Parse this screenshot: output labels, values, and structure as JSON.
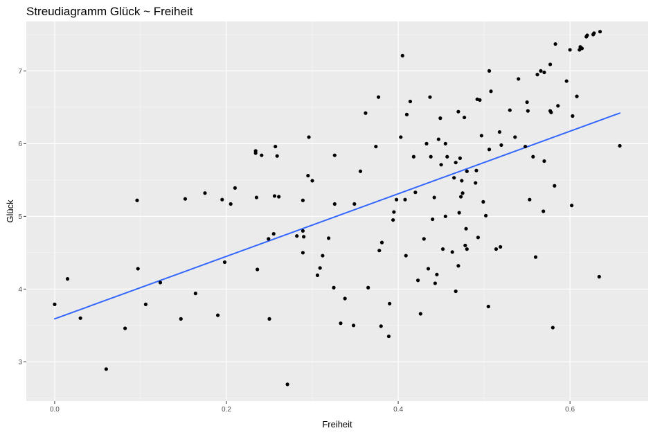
{
  "chart_data": {
    "type": "scatter",
    "title": "Streudiagramm Glück ~ Freiheit",
    "xlabel": "Freiheit",
    "ylabel": "Glück",
    "xlim": [
      -0.033,
      0.691
    ],
    "ylim": [
      2.46,
      7.68
    ],
    "xticks": [
      {
        "value": 0.0,
        "label": "0.0"
      },
      {
        "value": 0.2,
        "label": "0.2"
      },
      {
        "value": 0.4,
        "label": "0.4"
      },
      {
        "value": 0.6,
        "label": "0.6"
      }
    ],
    "yticks": [
      {
        "value": 3,
        "label": "3"
      },
      {
        "value": 4,
        "label": "4"
      },
      {
        "value": 5,
        "label": "5"
      },
      {
        "value": 6,
        "label": "6"
      },
      {
        "value": 7,
        "label": "7"
      }
    ],
    "grid": true,
    "legend": "none",
    "colors": {
      "panel": "#EBEBEB",
      "grid": "#FFFFFF",
      "point": "#000000",
      "fit_line": "#3366FF"
    },
    "points": [
      [
        0.0,
        3.79
      ],
      [
        0.015,
        4.14
      ],
      [
        0.03,
        3.6
      ],
      [
        0.06,
        2.9
      ],
      [
        0.082,
        3.46
      ],
      [
        0.096,
        5.22
      ],
      [
        0.097,
        4.28
      ],
      [
        0.106,
        3.79
      ],
      [
        0.123,
        4.09
      ],
      [
        0.147,
        3.59
      ],
      [
        0.152,
        5.24
      ],
      [
        0.164,
        3.94
      ],
      [
        0.175,
        5.32
      ],
      [
        0.19,
        3.64
      ],
      [
        0.195,
        5.23
      ],
      [
        0.198,
        4.37
      ],
      [
        0.205,
        5.17
      ],
      [
        0.21,
        5.39
      ],
      [
        0.234,
        5.87
      ],
      [
        0.234,
        5.9
      ],
      [
        0.235,
        5.26
      ],
      [
        0.236,
        4.27
      ],
      [
        0.241,
        5.84
      ],
      [
        0.249,
        4.69
      ],
      [
        0.25,
        3.59
      ],
      [
        0.255,
        4.76
      ],
      [
        0.256,
        5.28
      ],
      [
        0.257,
        5.96
      ],
      [
        0.259,
        5.83
      ],
      [
        0.261,
        5.27
      ],
      [
        0.271,
        2.69
      ],
      [
        0.282,
        4.73
      ],
      [
        0.289,
        4.5
      ],
      [
        0.289,
        4.8
      ],
      [
        0.29,
        4.72
      ],
      [
        0.289,
        5.22
      ],
      [
        0.295,
        5.56
      ],
      [
        0.296,
        6.09
      ],
      [
        0.3,
        5.49
      ],
      [
        0.306,
        4.19
      ],
      [
        0.309,
        4.29
      ],
      [
        0.312,
        4.46
      ],
      [
        0.319,
        4.7
      ],
      [
        0.325,
        4.02
      ],
      [
        0.326,
        5.17
      ],
      [
        0.326,
        5.84
      ],
      [
        0.333,
        3.53
      ],
      [
        0.338,
        3.87
      ],
      [
        0.348,
        3.5
      ],
      [
        0.349,
        5.17
      ],
      [
        0.356,
        5.62
      ],
      [
        0.362,
        6.42
      ],
      [
        0.365,
        4.02
      ],
      [
        0.374,
        5.96
      ],
      [
        0.377,
        6.64
      ],
      [
        0.378,
        4.53
      ],
      [
        0.381,
        4.64
      ],
      [
        0.38,
        3.49
      ],
      [
        0.389,
        3.35
      ],
      [
        0.39,
        3.8
      ],
      [
        0.394,
        4.95
      ],
      [
        0.395,
        5.06
      ],
      [
        0.398,
        5.23
      ],
      [
        0.403,
        6.09
      ],
      [
        0.405,
        7.21
      ],
      [
        0.408,
        5.23
      ],
      [
        0.409,
        4.46
      ],
      [
        0.41,
        6.4
      ],
      [
        0.414,
        6.58
      ],
      [
        0.418,
        5.82
      ],
      [
        0.42,
        5.33
      ],
      [
        0.423,
        4.12
      ],
      [
        0.426,
        3.66
      ],
      [
        0.43,
        4.69
      ],
      [
        0.433,
        6.0
      ],
      [
        0.435,
        4.28
      ],
      [
        0.437,
        6.64
      ],
      [
        0.438,
        5.82
      ],
      [
        0.44,
        4.96
      ],
      [
        0.442,
        5.26
      ],
      [
        0.443,
        4.08
      ],
      [
        0.445,
        4.2
      ],
      [
        0.447,
        6.06
      ],
      [
        0.449,
        6.35
      ],
      [
        0.45,
        5.71
      ],
      [
        0.452,
        4.55
      ],
      [
        0.455,
        5.0
      ],
      [
        0.455,
        6.0
      ],
      [
        0.457,
        5.82
      ],
      [
        0.463,
        4.51
      ],
      [
        0.465,
        5.53
      ],
      [
        0.467,
        3.97
      ],
      [
        0.467,
        5.74
      ],
      [
        0.47,
        4.32
      ],
      [
        0.47,
        6.44
      ],
      [
        0.471,
        5.05
      ],
      [
        0.472,
        5.8
      ],
      [
        0.473,
        5.27
      ],
      [
        0.474,
        5.49
      ],
      [
        0.475,
        5.32
      ],
      [
        0.477,
        6.36
      ],
      [
        0.478,
        4.6
      ],
      [
        0.479,
        4.83
      ],
      [
        0.48,
        5.62
      ],
      [
        0.48,
        4.55
      ],
      [
        0.49,
        5.46
      ],
      [
        0.491,
        5.63
      ],
      [
        0.492,
        6.61
      ],
      [
        0.493,
        4.71
      ],
      [
        0.495,
        6.6
      ],
      [
        0.497,
        6.11
      ],
      [
        0.499,
        5.2
      ],
      [
        0.502,
        5.01
      ],
      [
        0.505,
        3.76
      ],
      [
        0.506,
        5.92
      ],
      [
        0.506,
        7.0
      ],
      [
        0.508,
        6.72
      ],
      [
        0.514,
        4.55
      ],
      [
        0.518,
        6.16
      ],
      [
        0.519,
        4.58
      ],
      [
        0.52,
        5.98
      ],
      [
        0.53,
        6.46
      ],
      [
        0.536,
        6.09
      ],
      [
        0.54,
        6.89
      ],
      [
        0.548,
        5.96
      ],
      [
        0.55,
        6.57
      ],
      [
        0.551,
        6.45
      ],
      [
        0.553,
        5.23
      ],
      [
        0.557,
        5.82
      ],
      [
        0.56,
        4.44
      ],
      [
        0.562,
        6.95
      ],
      [
        0.566,
        7.0
      ],
      [
        0.569,
        5.07
      ],
      [
        0.57,
        6.98
      ],
      [
        0.57,
        5.76
      ],
      [
        0.577,
        7.09
      ],
      [
        0.577,
        6.45
      ],
      [
        0.578,
        6.43
      ],
      [
        0.58,
        3.47
      ],
      [
        0.582,
        5.42
      ],
      [
        0.583,
        7.37
      ],
      [
        0.586,
        6.52
      ],
      [
        0.596,
        6.86
      ],
      [
        0.6,
        7.29
      ],
      [
        0.602,
        5.15
      ],
      [
        0.603,
        6.38
      ],
      [
        0.608,
        6.65
      ],
      [
        0.611,
        7.29
      ],
      [
        0.612,
        7.33
      ],
      [
        0.614,
        7.31
      ],
      [
        0.619,
        7.47
      ],
      [
        0.62,
        7.49
      ],
      [
        0.627,
        7.5
      ],
      [
        0.628,
        7.52
      ],
      [
        0.635,
        7.54
      ],
      [
        0.634,
        4.17
      ],
      [
        0.658,
        5.97
      ]
    ],
    "fit_line": {
      "method": "lm",
      "x": [
        0.0,
        0.658
      ],
      "y": [
        3.59,
        6.42
      ]
    }
  }
}
